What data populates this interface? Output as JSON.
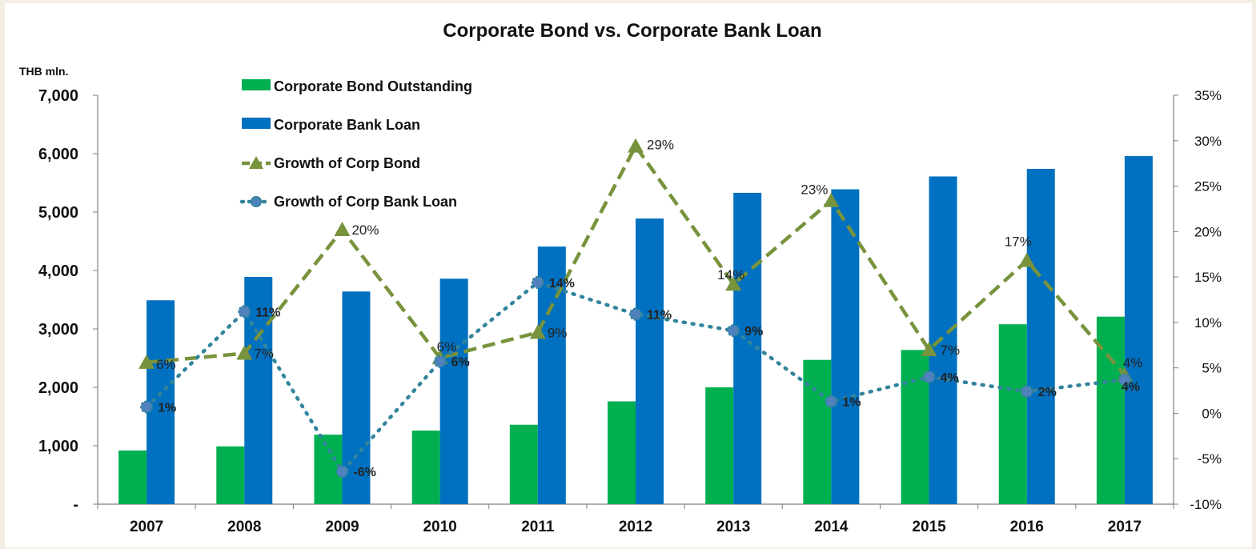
{
  "chart_data": {
    "type": "bar",
    "title": "Corporate Bond vs. Corporate Bank Loan",
    "ylabel": "THB mln.",
    "categories": [
      "2007",
      "2008",
      "2009",
      "2010",
      "2011",
      "2012",
      "2013",
      "2014",
      "2015",
      "2016",
      "2017"
    ],
    "ylim": [
      0,
      7000
    ],
    "y_ticks": [
      "-",
      "1,000",
      "2,000",
      "3,000",
      "4,000",
      "5,000",
      "6,000",
      "7,000"
    ],
    "y2lim": [
      -10,
      35
    ],
    "y2_ticks": [
      "-10%",
      "-5%",
      "0%",
      "5%",
      "10%",
      "15%",
      "20%",
      "25%",
      "30%",
      "35%"
    ],
    "grid": false,
    "legend_position": "top-left",
    "series": [
      {
        "name": "Corporate Bond Outstanding",
        "kind": "bar",
        "color": "#00b050",
        "values": [
          920,
          990,
          1190,
          1260,
          1360,
          1760,
          2000,
          2470,
          2640,
          3080,
          3210
        ]
      },
      {
        "name": "Corporate Bank Loan",
        "kind": "bar",
        "color": "#0070c0",
        "values": [
          3490,
          3890,
          3640,
          3860,
          4410,
          4890,
          5330,
          5390,
          5610,
          5740,
          5960
        ]
      },
      {
        "name": "Growth of Corp Bond",
        "kind": "line",
        "axis": "right",
        "color": "#77933c",
        "values": [
          5.6,
          6.6,
          20.2,
          6.1,
          8.9,
          29.4,
          14.2,
          23.4,
          7.0,
          16.8,
          4.2
        ],
        "labels": [
          "6%",
          "7%",
          "20%",
          "6%",
          "9%",
          "29%",
          "14%",
          "23%",
          "7%",
          "17%",
          "4%"
        ]
      },
      {
        "name": "Growth of Corp Bank Loan",
        "kind": "line",
        "axis": "right",
        "color": "#31849b",
        "values": [
          0.7,
          11.2,
          -6.4,
          5.7,
          14.4,
          10.9,
          9.1,
          1.3,
          4.0,
          2.4,
          3.7
        ],
        "labels": [
          "1%",
          "11%",
          "-6%",
          "6%",
          "14%",
          "11%",
          "9%",
          "1%",
          "4%",
          "2%",
          "4%"
        ]
      }
    ]
  }
}
